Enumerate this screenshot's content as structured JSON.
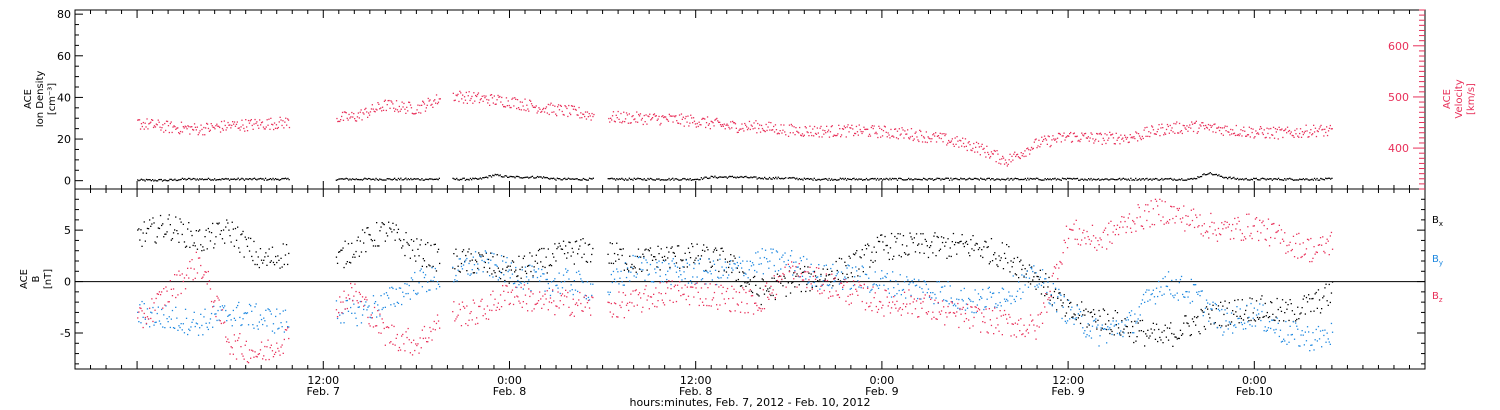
{
  "chart_data": [
    {
      "panel": "density_velocity",
      "type": "scatter",
      "ylabel_lines": [
        "ACE",
        "Ion Density",
        "[cm⁻³]"
      ],
      "ylim": [
        -4,
        82
      ],
      "yticks": [
        "0",
        "20",
        "40",
        "60",
        "80"
      ],
      "y2label_lines": [
        "ACE",
        "Velocity",
        "[km/s]"
      ],
      "y2lim": [
        320,
        670
      ],
      "y2ticks": [
        "400",
        "500",
        "600"
      ],
      "grid": false,
      "series": [
        {
          "name": "",
          "axis": "left",
          "color": "#000000",
          "x_hours": [
            0,
            1,
            2,
            3,
            4,
            5,
            6,
            7,
            8,
            9,
            10,
            11,
            12,
            13,
            14,
            15,
            16,
            17,
            18,
            19,
            20,
            21,
            22,
            23,
            24,
            25,
            26,
            27,
            28,
            29,
            30,
            31,
            32,
            33,
            34,
            35,
            36,
            37,
            38,
            39,
            40,
            41,
            42,
            43,
            44,
            45,
            46,
            47,
            48,
            49,
            50,
            51,
            52,
            53,
            54,
            55,
            56,
            57,
            58,
            59,
            60,
            61,
            62,
            63,
            64,
            65,
            66,
            67,
            68,
            69,
            70,
            71,
            72,
            73,
            74,
            75,
            76,
            77
          ],
          "values": [
            0.5,
            0.5,
            0.5,
            1,
            1,
            1,
            1,
            1,
            1,
            1,
            1,
            1,
            1,
            1,
            1,
            1,
            1,
            1,
            1,
            1,
            1,
            1,
            1,
            3,
            2,
            2,
            2,
            1,
            1,
            1,
            1,
            1,
            1,
            1,
            1,
            1,
            1,
            2,
            2,
            2,
            1.5,
            1.5,
            1.5,
            1,
            1,
            1,
            1,
            1,
            1,
            1,
            1,
            1,
            1,
            1,
            1,
            1,
            1,
            1,
            1,
            1,
            1,
            1,
            1,
            1,
            1,
            1,
            1,
            1,
            1,
            4,
            2,
            1,
            1,
            1,
            1,
            1,
            1,
            1
          ]
        },
        {
          "name": "",
          "axis": "right",
          "color": "#e8305a",
          "x_hours": [
            0,
            2,
            4,
            6,
            8,
            10,
            12,
            14,
            16,
            18,
            20,
            22,
            24,
            26,
            28,
            30,
            32,
            34,
            36,
            38,
            40,
            42,
            44,
            46,
            48,
            50,
            52,
            54,
            56,
            58,
            60,
            62,
            64,
            66,
            68,
            70,
            72,
            74,
            76,
            77
          ],
          "values": [
            450,
            442,
            438,
            445,
            448,
            452,
            458,
            462,
            485,
            478,
            505,
            498,
            492,
            480,
            472,
            462,
            460,
            458,
            454,
            444,
            443,
            436,
            434,
            435,
            433,
            428,
            418,
            404,
            376,
            410,
            424,
            420,
            422,
            438,
            443,
            438,
            432,
            430,
            436,
            433
          ]
        }
      ]
    },
    {
      "panel": "magnetic_field",
      "type": "scatter",
      "ylabel_lines": [
        "ACE",
        "B",
        "[nT]"
      ],
      "ylim": [
        -8.5,
        9
      ],
      "yticks": [
        "-5",
        "0",
        "5"
      ],
      "zero_line": true,
      "grid": false,
      "series": [
        {
          "name": "Bx",
          "label_main": "B",
          "label_sub": "x",
          "color": "#000000",
          "x_hours": [
            0,
            2,
            4,
            6,
            8,
            10,
            12,
            14,
            16,
            18,
            20,
            22,
            24,
            26,
            28,
            30,
            32,
            34,
            36,
            38,
            40,
            42,
            44,
            46,
            48,
            50,
            52,
            54,
            56,
            58,
            60,
            62,
            64,
            66,
            68,
            70,
            72,
            74,
            76,
            77
          ],
          "values": [
            4.5,
            5.5,
            4,
            5,
            2,
            3,
            1,
            3.5,
            5,
            3,
            2,
            2,
            1,
            2,
            3,
            3,
            2,
            2.5,
            2.5,
            2,
            -1,
            0,
            0.5,
            1.5,
            3.5,
            3.5,
            3.5,
            3.5,
            2.5,
            0.5,
            -3,
            -3.5,
            -4.5,
            -5.5,
            -4,
            -3,
            -2.5,
            -3,
            -2,
            -1
          ]
        },
        {
          "name": "By",
          "label_main": "B",
          "label_sub": "y",
          "color": "#1e88e0",
          "x_hours": [
            0,
            2,
            4,
            6,
            8,
            10,
            12,
            14,
            16,
            18,
            20,
            22,
            24,
            26,
            28,
            30,
            32,
            34,
            36,
            38,
            40,
            42,
            44,
            46,
            48,
            50,
            52,
            54,
            56,
            58,
            60,
            62,
            64,
            66,
            68,
            70,
            72,
            74,
            76,
            77
          ],
          "values": [
            -3,
            -3.5,
            -4,
            -3,
            -3.5,
            -4,
            -2.5,
            -3,
            -2,
            0,
            0.5,
            2,
            1,
            0,
            0,
            -1,
            1.5,
            1,
            1,
            1,
            2,
            2,
            0.5,
            0.5,
            0,
            -0.5,
            -1,
            -2,
            -1,
            0.5,
            -3,
            -5,
            -4,
            0,
            -1,
            -4,
            -3,
            -5,
            -5.5,
            -5
          ]
        },
        {
          "name": "Bz",
          "label_main": "B",
          "label_sub": "z",
          "color": "#e8305a",
          "x_hours": [
            0,
            2,
            4,
            6,
            8,
            10,
            12,
            14,
            16,
            18,
            20,
            22,
            24,
            26,
            28,
            30,
            32,
            34,
            36,
            38,
            40,
            42,
            44,
            46,
            48,
            50,
            52,
            54,
            56,
            58,
            60,
            62,
            64,
            66,
            68,
            70,
            72,
            74,
            76,
            77
          ],
          "values": [
            -4,
            -1,
            2,
            -6,
            -7,
            -5,
            -3,
            -1,
            -5,
            -6,
            -3,
            -3,
            -1,
            -2,
            -2,
            -2.5,
            -2,
            -1,
            -1,
            -1.5,
            -2,
            1,
            0,
            -1,
            -2,
            -2,
            -3,
            -3.5,
            -4,
            -4.5,
            5,
            4,
            6,
            7,
            6,
            5,
            5.5,
            4,
            3,
            4
          ]
        }
      ]
    }
  ],
  "xaxis": {
    "xlim_hours": [
      -4,
      83
    ],
    "major_ticks": [
      {
        "hours": 12,
        "time": "12:00",
        "date": "Feb. 7"
      },
      {
        "hours": 24,
        "time": "0:00",
        "date": "Feb. 8"
      },
      {
        "hours": 36,
        "time": "12:00",
        "date": "Feb. 8"
      },
      {
        "hours": 48,
        "time": "0:00",
        "date": "Feb. 9"
      },
      {
        "hours": 60,
        "time": "12:00",
        "date": "Feb. 9"
      },
      {
        "hours": 72,
        "time": "0:00",
        "date": "Feb.10"
      }
    ],
    "title": "hours:minutes, Feb.  7, 2012 - Feb. 10, 2012",
    "data_gaps_hours": [
      [
        9.8,
        12.8
      ],
      [
        19.5,
        20.3
      ],
      [
        29.4,
        30.3
      ],
      [
        41.8,
        41.9
      ]
    ]
  }
}
